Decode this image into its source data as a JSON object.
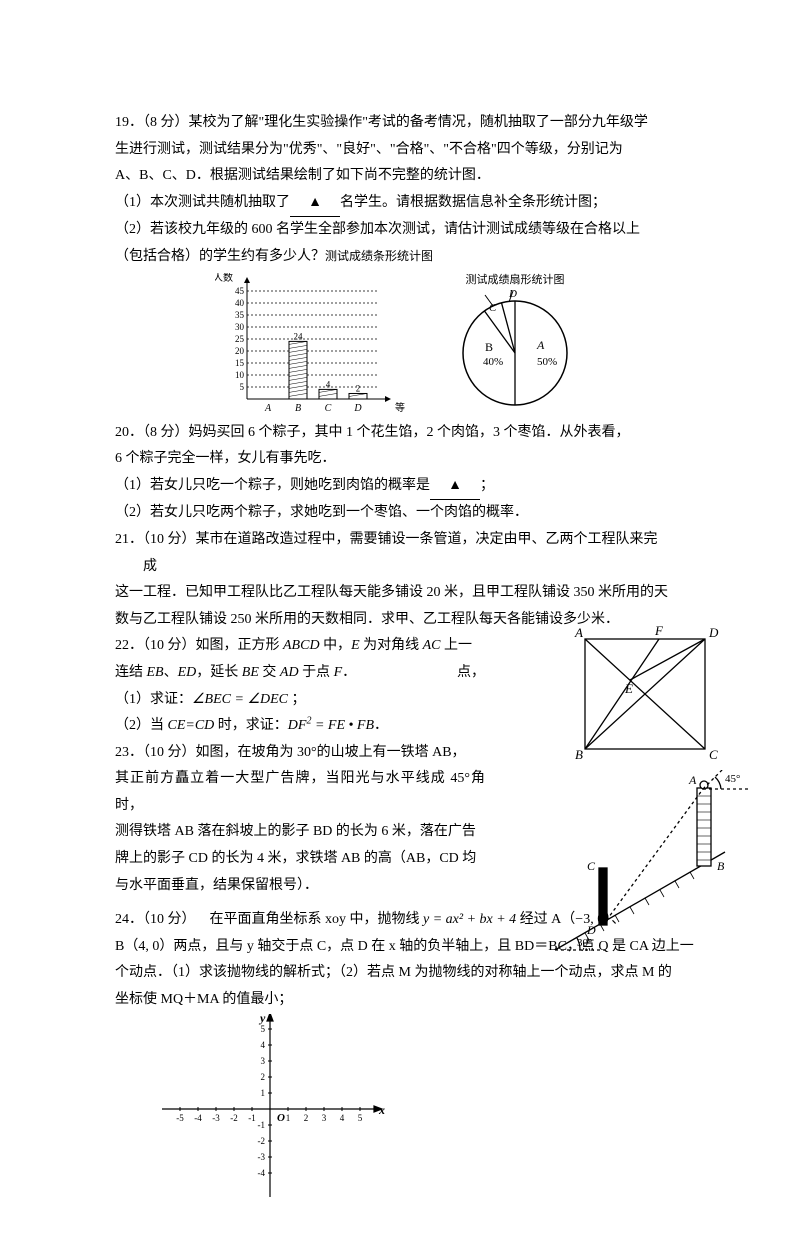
{
  "q19": {
    "num": "19．（8 分）",
    "l1": "某校为了解\"理化生实验操作\"考试的备考情况，随机抽取了一部分九年级学",
    "l2": "生进行测试，测试结果分为\"优秀\"、\"良好\"、\"合格\"、\"不合格\"四个等级，分别记为",
    "l3": "A、B、C、D．根据测试结果绘制了如下尚不完整的统计图．",
    "l4": "（1）本次测试共随机抽取了",
    "l4b": "▲",
    "l4c": "名学生。请根据数据信息补全条形统计图；",
    "l5": "（2）若该校九年级的 600 名学生全部参加本次测试，请估计测试成绩等级在合格以上",
    "l6": "（包括合格）的学生约有多少人？",
    "bar_title": "测试成绩条形统计图",
    "pie_title": "测试成绩扇形统计图",
    "y_label": "人数",
    "x_label": "等级",
    "y_ticks": [
      "5",
      "10",
      "15",
      "20",
      "25",
      "30",
      "35",
      "40",
      "45"
    ],
    "x_ticks": [
      "A",
      "B",
      "C",
      "D"
    ],
    "bars": [
      {
        "x": 0,
        "h": 0,
        "label": ""
      },
      {
        "x": 1,
        "h": 24,
        "label": "24"
      },
      {
        "x": 2,
        "h": 4,
        "label": "4"
      },
      {
        "x": 3,
        "h": 2.3,
        "label": "2"
      }
    ],
    "pie": {
      "A": {
        "label": "A",
        "pct": "50%",
        "start": 90,
        "end": -90,
        "fill": "#fff"
      },
      "B": {
        "label": "B",
        "pct": "40%",
        "start": 90,
        "end": 234,
        "fill": "#fff"
      },
      "C": {
        "label": "C",
        "start": 234,
        "end": 255
      },
      "D": {
        "label": "D",
        "start": 255,
        "end": 270
      }
    }
  },
  "q20": {
    "num": "20．（8 分）",
    "l1": "妈妈买回 6 个粽子，其中 1 个花生馅，2 个肉馅，3 个枣馅．从外表看，",
    "l2": "6 个粽子完全一样，女儿有事先吃．",
    "l3": "（1）若女儿只吃一个粽子，则她吃到肉馅的概率是",
    "l3b": "▲",
    "l3c": "；",
    "l4": "（2）若女儿只吃两个粽子，求她吃到一个枣馅、一个肉馅的概率．"
  },
  "q21": {
    "num": "21．（10 分）",
    "l1": "某市在道路改造过程中，需要铺设一条管道，决定由甲、乙两个工程队来完",
    "l1b": "成",
    "l2": "这一工程．已知甲工程队比乙工程队每天能多铺设 20 米，且甲工程队铺设 350 米所用的天",
    "l3": "数与乙工程队铺设 250 米所用的天数相同．求甲、乙工程队每天各能铺设多少米．"
  },
  "q22": {
    "num": "22．（10 分）",
    "l1a": "如图，正方形 ",
    "l1b": " 中，",
    "l1c": " 为对角线 ",
    "l1d": " 上一",
    "l1e": "点，",
    "l2a": "连结 ",
    "l2b": "、",
    "l2c": "，延长 ",
    "l2d": " 交 ",
    "l2e": " 于点 ",
    "l2f": "．",
    "l3": "（1）求证：∠BEC = ∠DEC ；",
    "l4a": "（2）当 ",
    "l4b": " 时，求证：",
    "l4c": "．",
    "labels": {
      "A": "A",
      "B": "B",
      "C": "C",
      "D": "D",
      "E": "E",
      "F": "F"
    }
  },
  "q23": {
    "num": "23．（10 分）",
    "l1": "如图，在坡角为 30°的山坡上有一铁塔 AB，",
    "l2": "其正前方矗立着一大型广告牌，当阳光与水平线成 45°角时，",
    "l3": "测得铁塔 AB 落在斜坡上的影子 BD 的长为 6 米，落在广告",
    "l4": "牌上的影子 CD 的长为 4 米，求铁塔 AB 的高（AB，CD 均",
    "l5": "与水平面垂直，结果保留根号）．",
    "angle1": "45°",
    "angle2": "30°",
    "labels": {
      "A": "A",
      "B": "B",
      "C": "C",
      "D": "D"
    }
  },
  "q24": {
    "num": "24．（10 分）",
    "gap": "在平面直角坐标系 xoy 中，抛物线 ",
    "eq": "y = ax² + bx + 4",
    "l1b": " 经过 A（−3, 0）、",
    "l2": "B（4, 0）两点，且与 y 轴交于点 C，点 D 在 x 轴的负半轴上，且 BD＝BC，点 Q 是 CA 边上一",
    "l3": "个动点．（1）求该抛物线的解析式；（2）若点 M 为抛物线的对称轴上一个动点，求点 M 的",
    "l4": "坐标使 MQ＋MA 的值最小；",
    "xticks": [
      "-5",
      "-4",
      "-3",
      "-2",
      "-1",
      "1",
      "2",
      "3",
      "4",
      "5"
    ],
    "yticks_pos": [
      "1",
      "2",
      "3",
      "4",
      "5"
    ],
    "yticks_neg": [
      "-1",
      "-2",
      "-3",
      "-4"
    ],
    "origin": "O",
    "xlabel": "x",
    "ylabel": "y"
  }
}
